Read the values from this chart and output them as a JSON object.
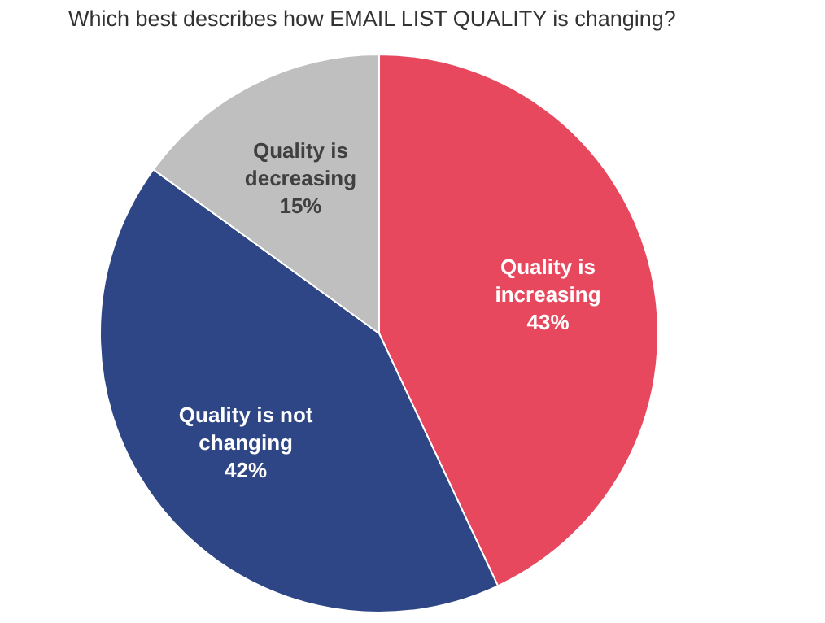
{
  "chart_data": {
    "type": "pie",
    "title": "Which best describes how EMAIL LIST QUALITY is changing?",
    "categories": [
      "Quality is increasing",
      "Quality is not changing",
      "Quality is decreasing"
    ],
    "values": [
      43,
      42,
      15
    ],
    "colors": [
      "#e8485e",
      "#2e4686",
      "#bfbfbf"
    ],
    "value_labels": [
      "43%",
      "42%",
      "15%"
    ],
    "legend": false
  }
}
